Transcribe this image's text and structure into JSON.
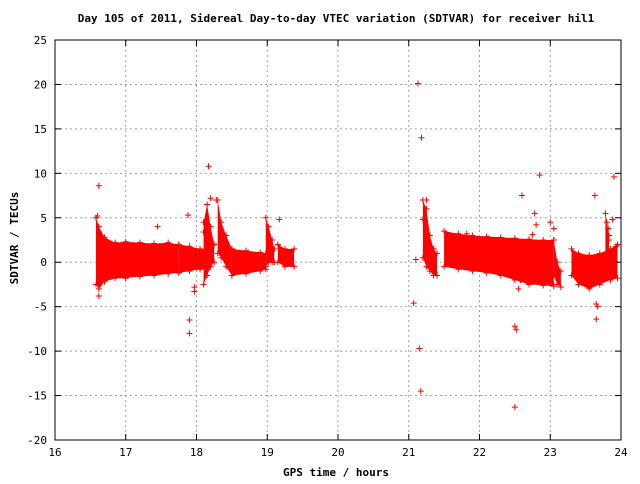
{
  "chart_data": {
    "type": "scatter",
    "title": "Day 105 of 2011, Sidereal Day-to-day VTEC variation (SDTVAR) for receiver hil1",
    "xlabel": "GPS time / hours",
    "ylabel": "SDTVAR / TECUs",
    "xlim": [
      16,
      24
    ],
    "ylim": [
      -20,
      25
    ],
    "xticks": [
      16,
      17,
      18,
      19,
      20,
      21,
      22,
      23,
      24
    ],
    "yticks": [
      -20,
      -15,
      -10,
      -5,
      0,
      5,
      10,
      15,
      20,
      25
    ],
    "grid": true,
    "marker": "+",
    "color": "#ff0000",
    "bands": [
      {
        "x": [
          16.58,
          16.62,
          16.7,
          16.85,
          17.0,
          17.2,
          17.4,
          17.6,
          17.75
        ],
        "upper": [
          5.0,
          4.0,
          2.8,
          2.2,
          2.3,
          2.2,
          2.1,
          2.2,
          2.0
        ],
        "lower": [
          -2.5,
          -3.0,
          -2.2,
          -1.8,
          -1.8,
          -1.6,
          -1.5,
          -1.3,
          -1.2
        ]
      },
      {
        "x": [
          17.75,
          17.9,
          18.05,
          18.15
        ],
        "upper": [
          2.0,
          1.8,
          1.5,
          1.4
        ],
        "lower": [
          -1.2,
          -1.0,
          -0.8,
          -0.8
        ]
      },
      {
        "x": [
          18.1,
          18.15,
          18.2,
          18.25
        ],
        "upper": [
          4.5,
          6.5,
          4.0,
          2.0
        ],
        "lower": [
          -2.5,
          -1.5,
          -0.5,
          0.0
        ]
      },
      {
        "x": [
          18.3,
          18.35,
          18.42,
          18.5
        ],
        "upper": [
          7.0,
          4.5,
          3.0,
          1.5
        ],
        "lower": [
          1.0,
          0.5,
          -0.5,
          -1.5
        ]
      },
      {
        "x": [
          18.5,
          18.7,
          18.9,
          18.98
        ],
        "upper": [
          1.5,
          1.3,
          1.1,
          1.0
        ],
        "lower": [
          -1.5,
          -1.3,
          -1.0,
          -0.8
        ]
      },
      {
        "x": [
          18.98,
          19.02,
          19.07,
          19.1
        ],
        "upper": [
          5.0,
          4.0,
          2.5,
          1.5
        ],
        "lower": [
          -0.5,
          0.0,
          0.0,
          0.0
        ]
      },
      {
        "x": [
          19.15,
          19.25,
          19.38
        ],
        "upper": [
          2.0,
          1.5,
          1.5
        ],
        "lower": [
          0.0,
          -0.5,
          -0.5
        ]
      },
      {
        "x": [
          21.2,
          21.25,
          21.3,
          21.35,
          21.4
        ],
        "upper": [
          7.0,
          6.0,
          3.0,
          1.5,
          1.0
        ],
        "lower": [
          0.5,
          -0.5,
          -1.0,
          -1.5,
          -1.5
        ]
      },
      {
        "x": [
          21.5,
          21.7,
          21.9,
          22.1,
          22.3,
          22.5,
          22.7,
          22.9,
          23.05
        ],
        "upper": [
          3.5,
          3.2,
          3.0,
          2.9,
          2.8,
          2.7,
          2.6,
          2.5,
          2.5
        ],
        "lower": [
          -0.5,
          -0.8,
          -1.0,
          -1.2,
          -1.5,
          -2.0,
          -2.5,
          -2.6,
          -2.7
        ]
      },
      {
        "x": [
          23.05,
          23.1,
          23.15
        ],
        "upper": [
          2.5,
          0.0,
          -1.0
        ],
        "lower": [
          -1.5,
          -2.5,
          -2.8
        ]
      },
      {
        "x": [
          23.3,
          23.4,
          23.55,
          23.7,
          23.85,
          23.95
        ],
        "upper": [
          1.5,
          1.0,
          0.8,
          1.0,
          1.5,
          2.0
        ],
        "lower": [
          -1.5,
          -2.5,
          -3.0,
          -2.5,
          -2.0,
          -1.8
        ]
      },
      {
        "x": [
          23.78,
          23.8,
          23.83
        ],
        "upper": [
          5.5,
          4.5,
          3.0
        ],
        "lower": [
          -0.5,
          0.0,
          0.0
        ]
      }
    ],
    "points": [
      [
        16.62,
        8.6
      ],
      [
        16.6,
        5.2
      ],
      [
        16.62,
        -3.8
      ],
      [
        17.45,
        4.0
      ],
      [
        17.88,
        5.3
      ],
      [
        17.9,
        -6.5
      ],
      [
        17.9,
        -8.0
      ],
      [
        17.97,
        -2.8
      ],
      [
        17.97,
        -3.3
      ],
      [
        18.17,
        10.8
      ],
      [
        18.2,
        7.2
      ],
      [
        18.28,
        7.0
      ],
      [
        19.17,
        4.8
      ],
      [
        18.1,
        3.4
      ],
      [
        21.07,
        -4.6
      ],
      [
        21.1,
        0.3
      ],
      [
        21.13,
        20.1
      ],
      [
        21.15,
        -9.7
      ],
      [
        21.18,
        14.0
      ],
      [
        21.17,
        -14.5
      ],
      [
        21.2,
        4.8
      ],
      [
        21.25,
        7.0
      ],
      [
        21.35,
        1.5
      ],
      [
        22.5,
        -16.3
      ],
      [
        22.5,
        -7.2
      ],
      [
        22.52,
        -7.6
      ],
      [
        22.6,
        7.5
      ],
      [
        22.78,
        5.5
      ],
      [
        22.8,
        4.2
      ],
      [
        22.85,
        9.8
      ],
      [
        22.75,
        3.1
      ],
      [
        23.0,
        4.5
      ],
      [
        23.05,
        3.8
      ],
      [
        23.63,
        7.5
      ],
      [
        23.65,
        -4.7
      ],
      [
        23.67,
        -5.0
      ],
      [
        23.65,
        -6.4
      ],
      [
        23.82,
        3.8
      ],
      [
        23.83,
        2.5
      ],
      [
        23.9,
        9.6
      ],
      [
        23.88,
        4.8
      ],
      [
        23.93,
        1.8
      ],
      [
        22.55,
        -3.0
      ],
      [
        22.58,
        -2.0
      ],
      [
        21.82,
        3.2
      ]
    ]
  }
}
